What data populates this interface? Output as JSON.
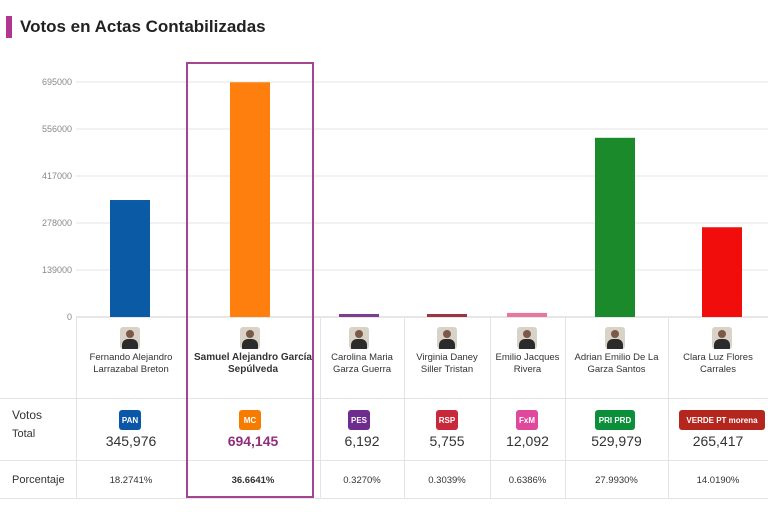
{
  "title": "Votos en Actas Contabilizadas",
  "row_labels": {
    "votos": "Votos",
    "total": "Total",
    "porcentaje": "Porcentaje"
  },
  "colors": {
    "accent": "#b0368f"
  },
  "candidates": [
    {
      "name": "Fernando Alejandro Larrazabal Breton",
      "party_logo": "PAN",
      "logo_color": "#0a57a8",
      "votes": "345,976",
      "percent": "18.2741%",
      "bar_color": "#0b5aa6"
    },
    {
      "name": "Samuel Alejandro García Sepúlveda",
      "party_logo": "MC",
      "logo_color": "#f57c00",
      "votes": "694,145",
      "percent": "36.6641%",
      "bar_color": "#ff7f0e"
    },
    {
      "name": "Carolina Maria Garza Guerra",
      "party_logo": "PES",
      "logo_color": "#6e2c8e",
      "votes": "6,192",
      "percent": "0.3270%",
      "bar_color": "#7b3f8f"
    },
    {
      "name": "Virginia Daney Siller Tristan",
      "party_logo": "RSP",
      "logo_color": "#c9273a",
      "votes": "5,755",
      "percent": "0.3039%",
      "bar_color": "#9d3444"
    },
    {
      "name": "Emilio Jacques Rivera",
      "party_logo": "FxM",
      "logo_color": "#e0489b",
      "votes": "12,092",
      "percent": "0.6386%",
      "bar_color": "#e6789f"
    },
    {
      "name": "Adrian Emilio De La Garza Santos",
      "party_logo": "PRI PRD",
      "logo_color": "#0b8f3a",
      "votes": "529,979",
      "percent": "27.9930%",
      "bar_color": "#1a8a2a"
    },
    {
      "name": "Clara Luz Flores Carrales",
      "party_logo": "VERDE PT morena",
      "logo_color": "#b5261e",
      "votes": "265,417",
      "percent": "14.0190%",
      "bar_color": "#f20d0d"
    }
  ],
  "chart_data": {
    "type": "bar",
    "title": "",
    "xlabel": "",
    "ylabel": "",
    "ylim": [
      0,
      695000
    ],
    "yticks": [
      "0",
      "139000",
      "278000",
      "417000",
      "556000",
      "695000"
    ],
    "categories": [
      "Fernando Alejandro Larrazabal Breton",
      "Samuel Alejandro García Sepúlveda",
      "Carolina Maria Garza Guerra",
      "Virginia Daney Siller Tristan",
      "Emilio Jacques Rivera",
      "Adrian Emilio De La Garza Santos",
      "Clara Luz Flores Carrales"
    ],
    "values": [
      345976,
      694145,
      6192,
      5755,
      12092,
      529979,
      265417
    ],
    "colors": [
      "#0b5aa6",
      "#ff7f0e",
      "#7b3f8f",
      "#9d3444",
      "#e6789f",
      "#1a8a2a",
      "#f20d0d"
    ],
    "grid": true,
    "legend": "none"
  }
}
